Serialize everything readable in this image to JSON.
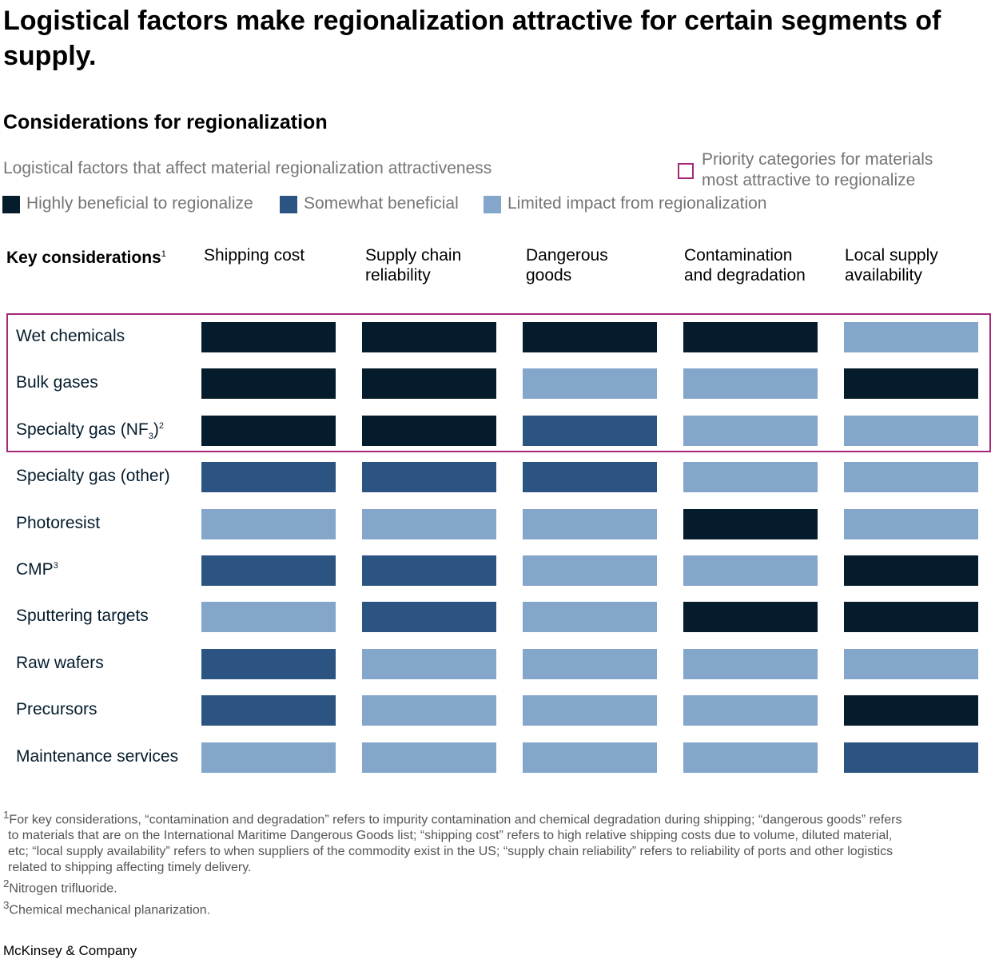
{
  "title": "Logistical factors make regionalization attractive for certain segments of supply.",
  "subtitle": "Considerations for regionalization",
  "description": "Logistical factors that affect material regionalization attractiveness",
  "priority_legend": "Priority categories for materials most attractive to regionalize",
  "priority_color": "#a4287a",
  "legend": [
    {
      "label": "Highly beneficial to regionalize",
      "color": "#051c2c"
    },
    {
      "label": "Somewhat beneficial",
      "color": "#2c5482"
    },
    {
      "label": "Limited impact from regionalization",
      "color": "#84a6ca"
    }
  ],
  "key_considerations_label": "Key considerations",
  "key_considerations_note": "1",
  "chart_data": {
    "type": "heatmap",
    "columns": [
      "Shipping cost",
      "Supply chain reliability",
      "Dangerous goods",
      "Contamination and degradation",
      "Local supply availability"
    ],
    "rows": [
      {
        "label": "Wet chemicals",
        "note": "",
        "values": [
          "high",
          "high",
          "high",
          "high",
          "limited"
        ]
      },
      {
        "label": "Bulk gases",
        "note": "",
        "values": [
          "high",
          "high",
          "limited",
          "limited",
          "high"
        ]
      },
      {
        "label": "Specialty gas (NF",
        "sub": "3",
        "label_end": ")",
        "note": "2",
        "values": [
          "high",
          "high",
          "somewhat",
          "limited",
          "limited"
        ]
      },
      {
        "label": "Specialty gas (other)",
        "note": "",
        "values": [
          "somewhat",
          "somewhat",
          "somewhat",
          "limited",
          "limited"
        ]
      },
      {
        "label": "Photoresist",
        "note": "",
        "values": [
          "limited",
          "limited",
          "limited",
          "high",
          "limited"
        ]
      },
      {
        "label": "CMP",
        "note": "3",
        "values": [
          "somewhat",
          "somewhat",
          "limited",
          "limited",
          "high"
        ]
      },
      {
        "label": "Sputtering targets",
        "note": "",
        "values": [
          "limited",
          "somewhat",
          "limited",
          "high",
          "high"
        ]
      },
      {
        "label": "Raw wafers",
        "note": "",
        "values": [
          "somewhat",
          "limited",
          "limited",
          "limited",
          "limited"
        ]
      },
      {
        "label": "Precursors",
        "note": "",
        "values": [
          "somewhat",
          "limited",
          "limited",
          "limited",
          "high"
        ]
      },
      {
        "label": "Maintenance services",
        "note": "",
        "values": [
          "limited",
          "limited",
          "limited",
          "limited",
          "somewhat"
        ]
      }
    ],
    "priority_rows": [
      "Wet chemicals",
      "Bulk gases",
      "Specialty gas (NF3)"
    ]
  },
  "footnotes": {
    "f1_mark": "1",
    "f1_line1": "For key considerations, “contamination and degradation” refers to impurity contamination and chemical degradation during shipping; “dangerous goods” refers",
    "f1_line2": "to materials that are on the International Maritime Dangerous Goods list; “shipping cost” refers to high relative shipping costs due to volume, diluted material,",
    "f1_line3": "etc; “local supply availability” refers to when suppliers of the commodity exist in the US; “supply chain reliability” refers to reliability of ports and other logistics",
    "f1_line4": "related to shipping affecting timely delivery.",
    "f2_mark": "2",
    "f2": "Nitrogen trifluoride.",
    "f3_mark": "3",
    "f3": "Chemical mechanical planarization."
  },
  "brand": "McKinsey & Company"
}
